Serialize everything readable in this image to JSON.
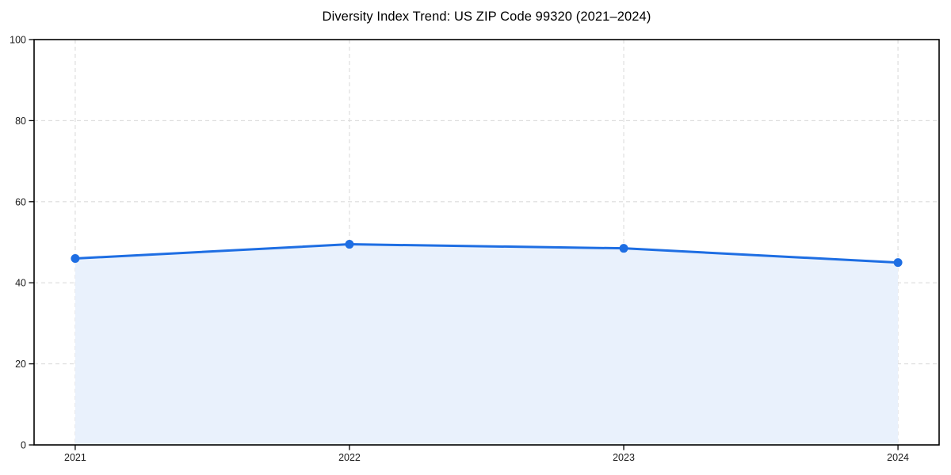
{
  "figure": {
    "background": "#ffffff"
  },
  "chart_data": {
    "type": "area",
    "title": "Diversity Index Trend: US ZIP Code 99320 (2021–2024)",
    "x": [
      2021,
      2022,
      2023,
      2024
    ],
    "x_tick_labels": [
      "2021",
      "2022",
      "2023",
      "2024"
    ],
    "values": [
      46,
      49.5,
      48.5,
      45
    ],
    "ylabel": "",
    "xlabel": "",
    "ylim": [
      0,
      100
    ],
    "yticks": [
      0,
      20,
      40,
      60,
      80,
      100
    ],
    "grid": true,
    "grid_style": "dashed",
    "legend": "none",
    "marker": "circle",
    "colors": {
      "line": "#1e6ee3",
      "marker": "#1e6ee3",
      "area_fill": "#e9f1fc",
      "grid": "#dcdcdc",
      "spine": "#000000",
      "tick_text": "#1a1a1a",
      "title_text": "#000000"
    }
  }
}
